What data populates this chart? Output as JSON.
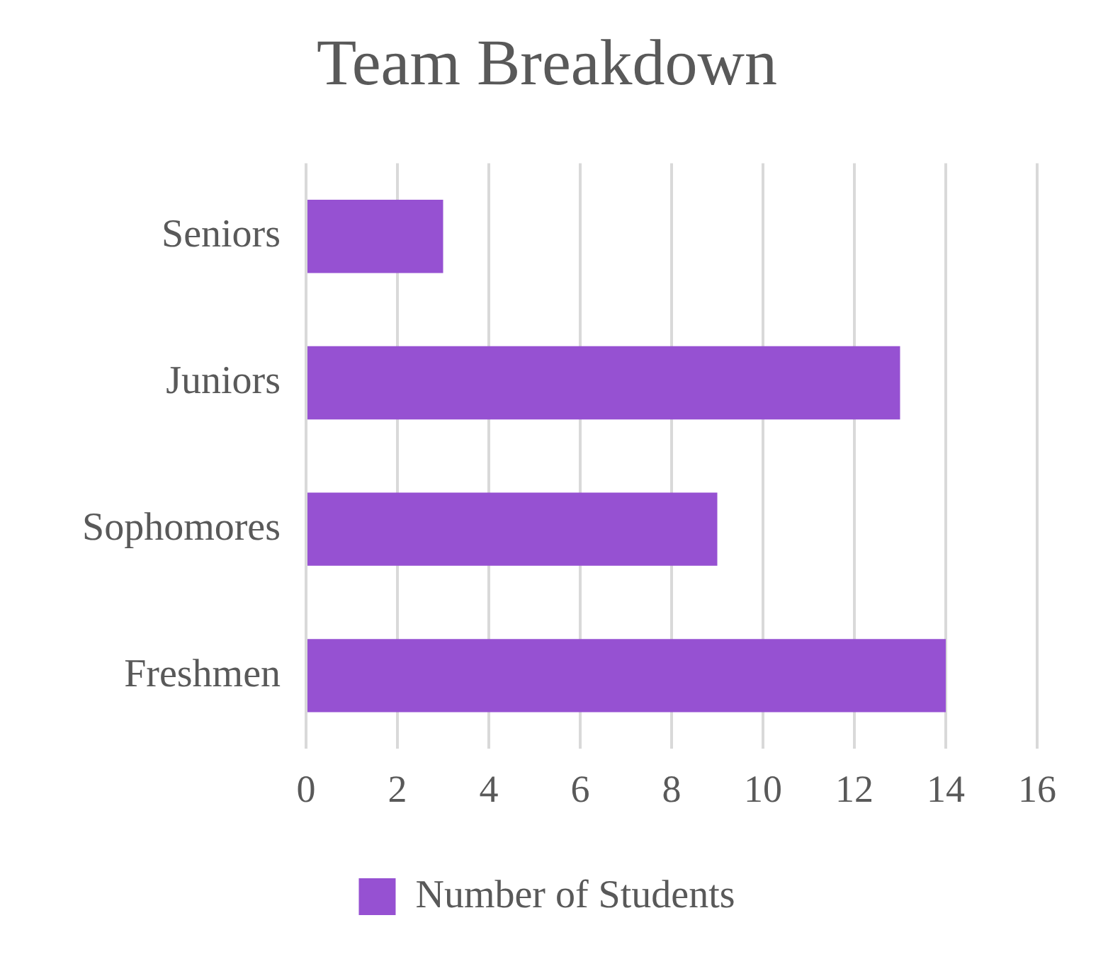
{
  "chart_data": {
    "type": "bar",
    "orientation": "horizontal",
    "title": "Team Breakdown",
    "categories": [
      "Seniors",
      "Juniors",
      "Sophomores",
      "Freshmen"
    ],
    "series": [
      {
        "name": "Number of Students",
        "color": "#9651d2",
        "values": [
          3,
          13,
          9,
          14
        ]
      }
    ],
    "xlim": [
      0,
      16
    ],
    "xticks": [
      0,
      2,
      4,
      6,
      8,
      10,
      12,
      14,
      16
    ],
    "grid": "x",
    "legend": "bottom"
  }
}
